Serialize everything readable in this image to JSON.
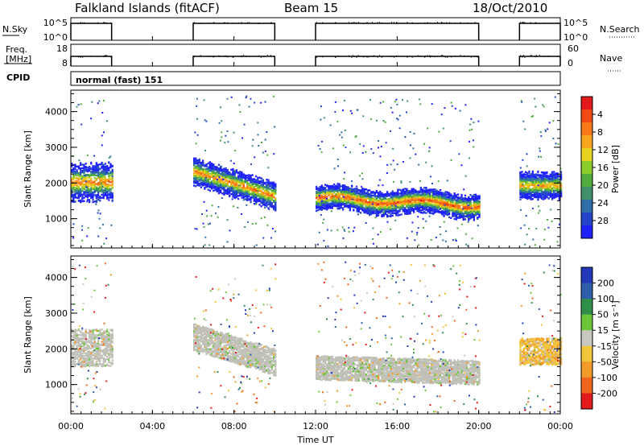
{
  "header": {
    "station": "Falkland Islands (fitACF)",
    "beam": "Beam 15",
    "date": "18/Oct/2010"
  },
  "panels": {
    "nsky": {
      "label": "N.Sky",
      "left_ticks": [
        "10^5",
        "10^0"
      ],
      "right_label": "N.Search",
      "right_ticks": [
        "10^5",
        "10^0"
      ]
    },
    "freq": {
      "label_line1": "Freq.",
      "label_line2": "[MHz]",
      "left_ticks": [
        "18",
        "8"
      ],
      "right_label": "Nave",
      "right_ticks": [
        "60",
        "0"
      ]
    },
    "cpid": {
      "label": "CPID",
      "value": "normal (fast) 151"
    }
  },
  "chart_data": [
    {
      "type": "heatmap",
      "name": "power",
      "ylabel": "Slant Range [km]",
      "yticks": [
        1000,
        2000,
        3000,
        4000
      ],
      "ylim": [
        180,
        4600
      ],
      "xlim": [
        0,
        24
      ],
      "colorbar": {
        "label": "Power [dB]",
        "ticks": [
          "4",
          "8",
          "12",
          "16",
          "20",
          "24",
          "28"
        ],
        "colors": [
          "#1f1fff",
          "#2545c8",
          "#2e6ea8",
          "#3e8f6a",
          "#4fab3c",
          "#8ccc2a",
          "#e6d21f",
          "#f7a51c",
          "#f87a19",
          "#f04a16",
          "#e31a1c"
        ]
      },
      "data_intervals_ut": [
        [
          0,
          2
        ],
        [
          6,
          10
        ],
        [
          12,
          20
        ],
        [
          22,
          24
        ]
      ],
      "features": [
        {
          "t_start": 0,
          "t_end": 2,
          "r_center": 2050,
          "r_width": 700,
          "intensity_db": 20
        },
        {
          "t_start": 6,
          "t_end": 10,
          "r_center": 2050,
          "r_width": 500,
          "intensity_db": 20
        },
        {
          "t_start": 12,
          "t_end": 20,
          "r_center": 1450,
          "r_width": 450,
          "intensity_db": 22
        },
        {
          "t_start": 22,
          "t_end": 24,
          "r_center": 1950,
          "r_width": 500,
          "intensity_db": 18
        }
      ]
    },
    {
      "type": "heatmap",
      "name": "velocity",
      "ylabel": "Slant Range [km]",
      "xlabel": "Time UT",
      "xticks": [
        "00:00",
        "04:00",
        "08:00",
        "12:00",
        "16:00",
        "20:00",
        "00:00"
      ],
      "yticks": [
        1000,
        2000,
        3000,
        4000
      ],
      "ylim": [
        180,
        4600
      ],
      "xlim": [
        0,
        24
      ],
      "colorbar": {
        "label": "Velocity [m s⁻¹]",
        "ticks": [
          "200",
          "100",
          "50",
          "15",
          "-15",
          "-50",
          "-100",
          "-200"
        ],
        "colors": [
          "#2238b8",
          "#2f5fa8",
          "#2f8f4a",
          "#6cc63a",
          "#c8c8c0",
          "#f2c53a",
          "#f29a2a",
          "#f0661c",
          "#e31a1c"
        ]
      },
      "ground_scatter_color": "#c0c0b8",
      "data_intervals_ut": [
        [
          0,
          2
        ],
        [
          6,
          10
        ],
        [
          12,
          20
        ],
        [
          22,
          24
        ]
      ]
    }
  ]
}
